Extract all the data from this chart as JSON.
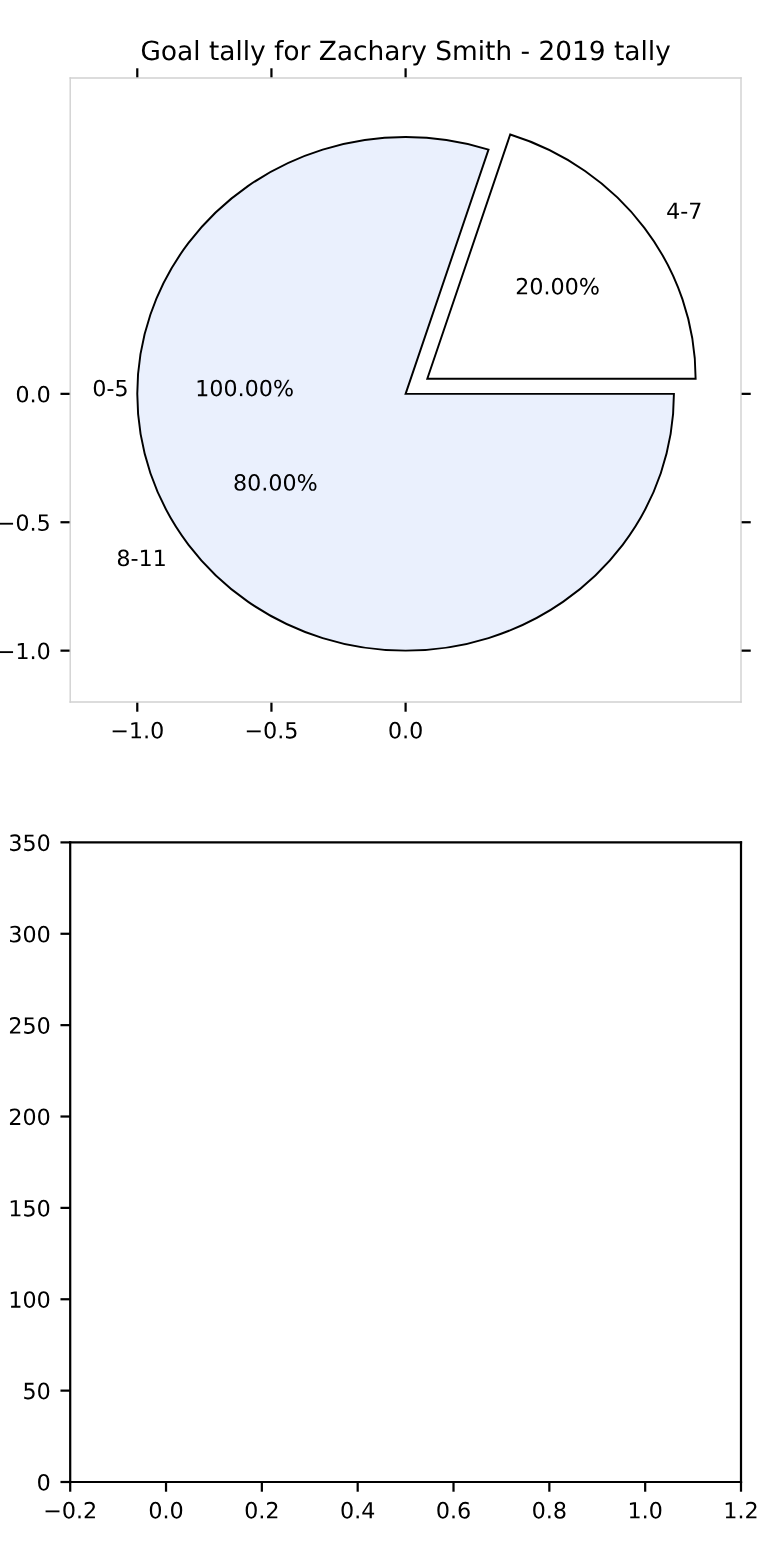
{
  "chart_data": [
    {
      "type": "pie",
      "title": "Goal tally for Zachary Smith - 2019 tally",
      "categories": [
        "4-7",
        "8-11"
      ],
      "values": [
        20,
        80
      ],
      "colors": [
        "#ffffff",
        "#eaf0fd"
      ],
      "value_labels": [
        "20.00%",
        "80.00%"
      ],
      "legend": false,
      "grid": false
    },
    {
      "type": "scatter",
      "xlim": [
        -1.25,
        1.25
      ],
      "ylim": [
        -1.2,
        1.23
      ],
      "xticks": [
        {
          "value": -1,
          "label": "−1.0"
        },
        {
          "value": -0.5,
          "label": "−0.5"
        },
        {
          "value": 0,
          "label": "0.0"
        }
      ],
      "yticks": [
        {
          "value": 0,
          "label": "0.0"
        },
        {
          "value": -0.5,
          "label": "−0.5"
        },
        {
          "value": -1,
          "label": "−1.0"
        }
      ],
      "annotations": [
        "0-5",
        "100.00%"
      ]
    },
    {
      "type": "scatter",
      "xlim": [
        -0.2,
        1.2
      ],
      "xticks": [
        {
          "value": -0.2,
          "label": "−0.2"
        },
        {
          "value": 0,
          "label": "0.0"
        },
        0.2,
        0.4,
        0.6,
        0.8,
        {
          "value": 1,
          "label": "1.0"
        },
        1.2
      ],
      "ylim": [
        0,
        350
      ],
      "yticks": [
        0,
        50,
        100,
        150,
        200,
        250,
        300,
        350
      ],
      "grid": false,
      "legend": false
    }
  ]
}
